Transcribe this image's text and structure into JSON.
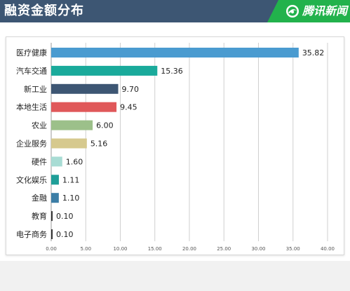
{
  "header": {
    "title": "融资金额分布",
    "brand": "腾讯新闻"
  },
  "colors": {
    "header_bg": "#3d5673",
    "brand_bg": "#22b24c"
  },
  "chart_data": {
    "type": "bar",
    "orientation": "horizontal",
    "categories": [
      "医疗健康",
      "汽车交通",
      "新工业",
      "本地生活",
      "农业",
      "企业服务",
      "硬件",
      "文化娱乐",
      "金融",
      "教育",
      "电子商务"
    ],
    "values": [
      35.82,
      15.36,
      9.7,
      9.45,
      6.0,
      5.16,
      1.6,
      1.11,
      1.1,
      0.1,
      0.1
    ],
    "value_labels": [
      "35.82",
      "15.36",
      "9.70",
      "9.45",
      "6.00",
      "5.16",
      "1.60",
      "1.11",
      "1.10",
      "0.10",
      "0.10"
    ],
    "colors": [
      "#4a9bd0",
      "#1aaa9b",
      "#3d5673",
      "#e0585a",
      "#9cc08a",
      "#d6c98e",
      "#a8dcd4",
      "#1f9e98",
      "#3c7ea6",
      "#333333",
      "#333333"
    ],
    "xlim": [
      0,
      40
    ],
    "xticks": [
      "0.00",
      "5.00",
      "10.00",
      "15.00",
      "20.00",
      "25.00",
      "30.00",
      "35.00",
      "40.00"
    ],
    "grid": true,
    "title": "融资金额分布"
  }
}
